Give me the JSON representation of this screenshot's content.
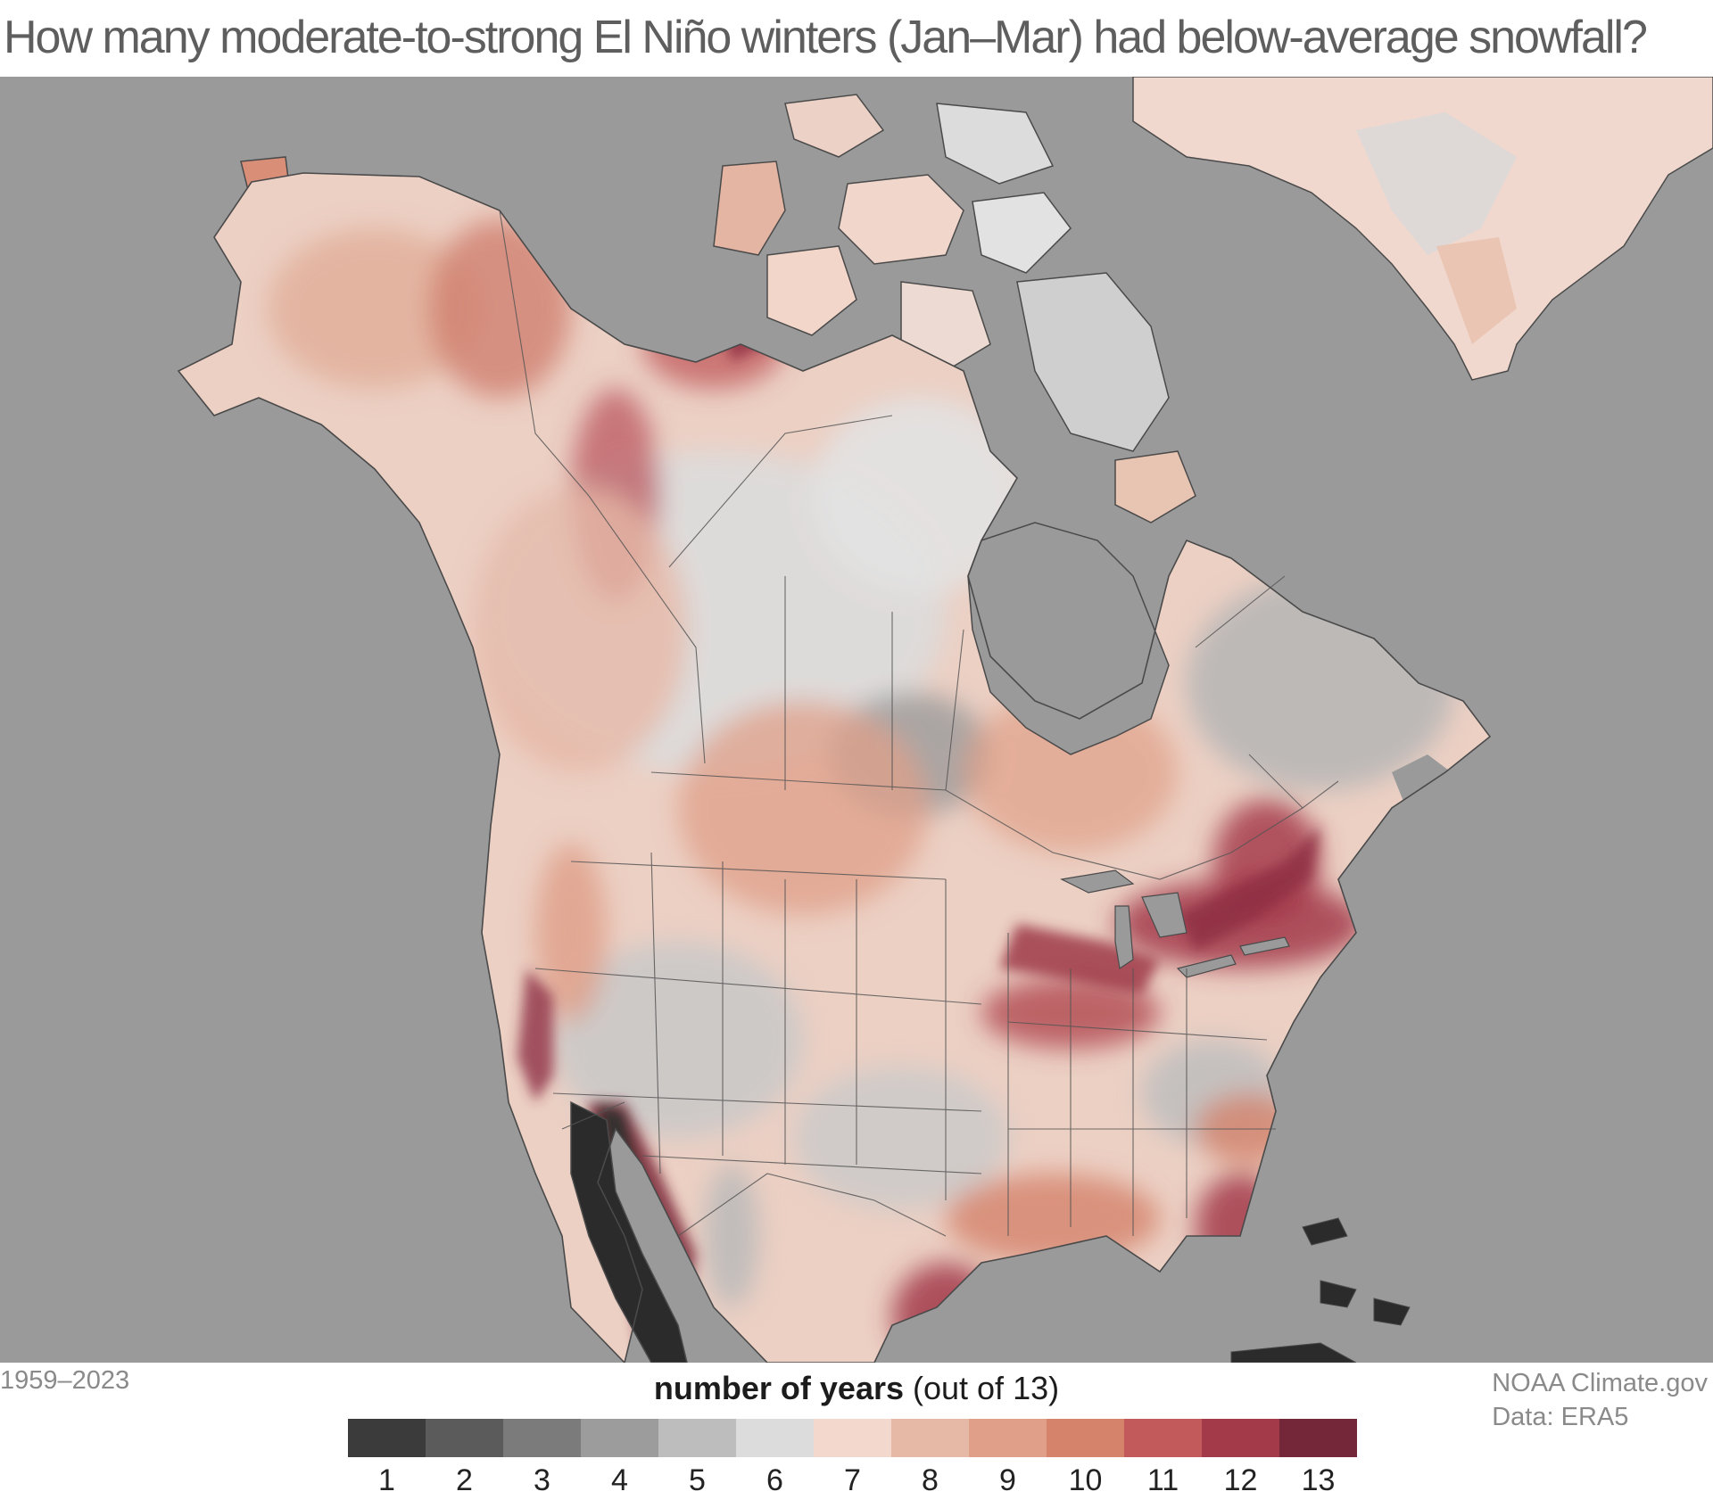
{
  "title": "How many moderate-to-strong El Niño winters (Jan–Mar) had below-average snowfall?",
  "period": "1959–2023",
  "credit": {
    "line1": "NOAA Climate.gov",
    "line2": "Data: ERA5"
  },
  "legend": {
    "title_bold": "number of years",
    "title_rest": " (out of 13)",
    "classes": [
      {
        "label": "1",
        "color": "#3b3b3b"
      },
      {
        "label": "2",
        "color": "#5b5b5b"
      },
      {
        "label": "3",
        "color": "#7b7b7b"
      },
      {
        "label": "4",
        "color": "#9c9c9c"
      },
      {
        "label": "5",
        "color": "#bdbdbd"
      },
      {
        "label": "6",
        "color": "#dcdcdc"
      },
      {
        "label": "7",
        "color": "#f2d8cd"
      },
      {
        "label": "8",
        "color": "#e6b8a6"
      },
      {
        "label": "9",
        "color": "#df9f88"
      },
      {
        "label": "10",
        "color": "#d5836b"
      },
      {
        "label": "11",
        "color": "#c2595a"
      },
      {
        "label": "12",
        "color": "#a23a4a"
      },
      {
        "label": "13",
        "color": "#732738"
      }
    ]
  },
  "colors": {
    "ocean": "#9a9a9a",
    "boundary": "#4a4a4a"
  }
}
